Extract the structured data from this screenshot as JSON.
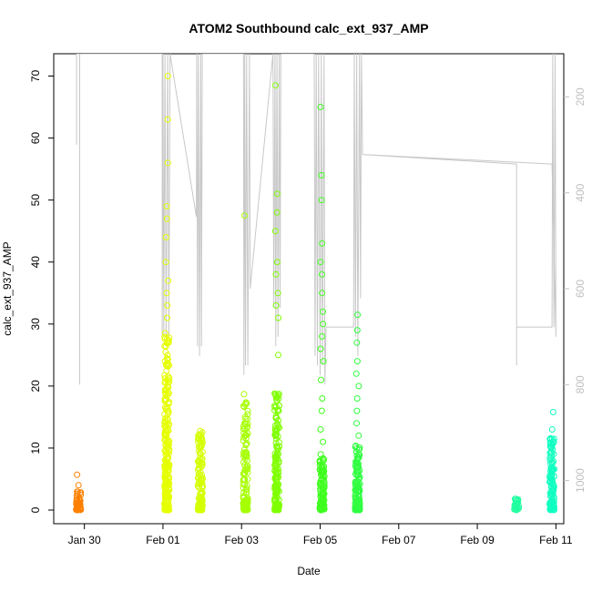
{
  "chart_data": {
    "type": "scatter",
    "title": "ATOM2 Southbound calc_ext_937_AMP",
    "xlabel": "Date",
    "ylabel": "calc_ext_937_AMP",
    "x_ticks": [
      "Jan 30",
      "Feb 01",
      "Feb 03",
      "Feb 05",
      "Feb 07",
      "Feb 09",
      "Feb 11"
    ],
    "x_tick_days": [
      0,
      2,
      4,
      6,
      8,
      10,
      12
    ],
    "xlim_days": [
      -0.78,
      12.2
    ],
    "ylim": [
      0,
      72
    ],
    "y_ticks": [
      0,
      10,
      20,
      30,
      40,
      50,
      60,
      70
    ],
    "y2_ticks": [
      200,
      400,
      600,
      800,
      1000
    ],
    "y2lim": [
      110,
      1090
    ],
    "y2_inverted": true,
    "grid": false,
    "legend": "none",
    "colors": {
      "axis": "#000000",
      "depth_line": "#c8c8c8",
      "right_axis": "#c0c0c0"
    },
    "clusters": [
      {
        "x": -0.15,
        "color": "#ff8000",
        "ymax": 3.2,
        "outliers": [
          4.0,
          5.7
        ],
        "n": 60
      },
      {
        "x": 2.1,
        "color": "#e6ff00",
        "ymax": 29.0,
        "outliers": [
          31,
          33,
          35,
          37,
          40,
          44,
          47,
          49,
          56,
          63,
          70
        ],
        "n": 260
      },
      {
        "x": 2.95,
        "color": "#d4ff00",
        "ymax": 13.0,
        "outliers": [],
        "n": 120
      },
      {
        "x": 4.1,
        "color": "#a6ff00",
        "ymax": 19.5,
        "outliers": [
          47.5
        ],
        "n": 120
      },
      {
        "x": 4.9,
        "color": "#7fff00",
        "ymax": 19.0,
        "outliers": [
          25,
          31,
          33,
          35,
          38,
          40,
          45,
          48,
          51,
          68.5
        ],
        "n": 160
      },
      {
        "x": 6.05,
        "color": "#40ff20",
        "ymax": 9.0,
        "outliers": [
          11,
          13,
          16,
          18,
          21,
          24,
          26,
          28,
          30,
          32,
          35,
          38,
          40,
          43,
          50,
          54,
          65
        ],
        "n": 120
      },
      {
        "x": 6.95,
        "color": "#30ff40",
        "ymax": 10.5,
        "outliers": [
          12,
          14,
          16,
          18,
          20,
          22,
          24,
          27,
          29,
          31.5
        ],
        "n": 130
      },
      {
        "x": 11.0,
        "color": "#20ffa0",
        "ymax": 1.8,
        "outliers": [],
        "n": 25
      },
      {
        "x": 11.9,
        "color": "#10ffc0",
        "ymax": 12.0,
        "outliers": [
          13,
          15.8
        ],
        "n": 120
      }
    ],
    "depth_track": [
      [
        -0.2,
        110
      ],
      [
        -0.2,
        300
      ],
      [
        -0.2,
        110
      ],
      [
        -0.12,
        110
      ],
      [
        -0.12,
        800
      ],
      [
        -0.12,
        110
      ],
      [
        0.8,
        110
      ],
      [
        1.95,
        110
      ],
      [
        1.98,
        110
      ],
      [
        1.98,
        700
      ],
      [
        2.0,
        110
      ],
      [
        2.02,
        700
      ],
      [
        2.05,
        110
      ],
      [
        2.08,
        720
      ],
      [
        2.12,
        110
      ],
      [
        2.15,
        700
      ],
      [
        2.18,
        110
      ],
      [
        2.85,
        450
      ],
      [
        2.86,
        110
      ],
      [
        2.88,
        720
      ],
      [
        2.9,
        110
      ],
      [
        2.93,
        740
      ],
      [
        2.96,
        110
      ],
      [
        2.98,
        720
      ],
      [
        3.0,
        110
      ],
      [
        4.05,
        110
      ],
      [
        4.06,
        780
      ],
      [
        4.08,
        110
      ],
      [
        4.1,
        760
      ],
      [
        4.13,
        110
      ],
      [
        4.16,
        760
      ],
      [
        4.2,
        110
      ],
      [
        4.22,
        600
      ],
      [
        4.8,
        110
      ],
      [
        4.82,
        640
      ],
      [
        4.85,
        110
      ],
      [
        4.87,
        720
      ],
      [
        4.9,
        110
      ],
      [
        4.93,
        700
      ],
      [
        4.96,
        110
      ],
      [
        4.98,
        640
      ],
      [
        5.0,
        110
      ],
      [
        5.85,
        110
      ],
      [
        5.87,
        740
      ],
      [
        5.9,
        110
      ],
      [
        5.93,
        760
      ],
      [
        5.96,
        110
      ],
      [
        6.0,
        780
      ],
      [
        6.03,
        110
      ],
      [
        6.06,
        760
      ],
      [
        6.1,
        110
      ],
      [
        6.12,
        800
      ],
      [
        6.15,
        680
      ],
      [
        6.85,
        680
      ],
      [
        6.87,
        110
      ],
      [
        6.9,
        700
      ],
      [
        6.93,
        110
      ],
      [
        6.96,
        740
      ],
      [
        7.0,
        110
      ],
      [
        7.03,
        620
      ],
      [
        7.05,
        110
      ],
      [
        7.08,
        320
      ],
      [
        11.0,
        340
      ],
      [
        11.0,
        760
      ],
      [
        11.0,
        680
      ],
      [
        11.9,
        680
      ],
      [
        11.92,
        110
      ],
      [
        11.95,
        680
      ],
      [
        11.98,
        110
      ],
      [
        12.0,
        700
      ],
      [
        11.9,
        340
      ],
      [
        7.08,
        320
      ]
    ]
  }
}
